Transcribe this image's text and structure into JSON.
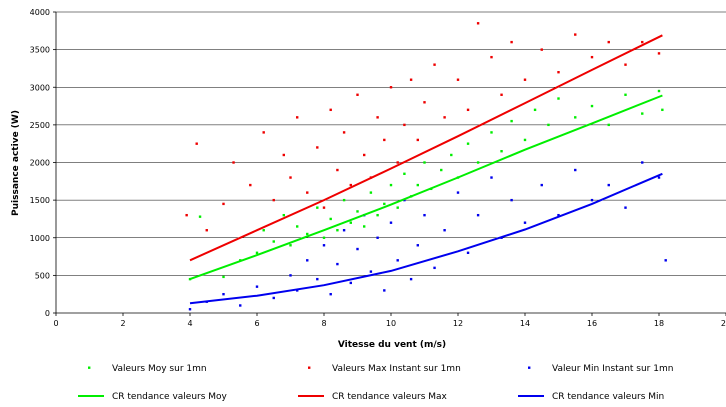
{
  "chart_data": {
    "type": "scatter",
    "title": "",
    "xlabel": "Vitesse du vent (m/s)",
    "ylabel": "Puissance active (W)",
    "xlim": [
      0,
      20
    ],
    "ylim": [
      0,
      4000
    ],
    "x_ticks": [
      "0",
      "2",
      "4",
      "6",
      "8",
      "10",
      "12",
      "14",
      "16",
      "18",
      "20"
    ],
    "y_ticks": [
      "0",
      "500",
      "1000",
      "1500",
      "2000",
      "2500",
      "3000",
      "3500",
      "4000"
    ],
    "grid": "horizontal",
    "legend_position": "bottom",
    "series": [
      {
        "name": "Valeurs Moy sur 1mn",
        "kind": "scatter",
        "color": "#00ee00",
        "points": [
          [
            4.0,
            450
          ],
          [
            4.3,
            1280
          ],
          [
            5.0,
            480
          ],
          [
            5.5,
            700
          ],
          [
            6.0,
            800
          ],
          [
            6.2,
            1100
          ],
          [
            6.5,
            950
          ],
          [
            6.8,
            1300
          ],
          [
            7.0,
            900
          ],
          [
            7.2,
            1150
          ],
          [
            7.5,
            1050
          ],
          [
            7.8,
            1400
          ],
          [
            8.0,
            1000
          ],
          [
            8.2,
            1250
          ],
          [
            8.4,
            1100
          ],
          [
            8.6,
            1500
          ],
          [
            8.8,
            1200
          ],
          [
            9.0,
            1350
          ],
          [
            9.2,
            1150
          ],
          [
            9.4,
            1600
          ],
          [
            9.6,
            1300
          ],
          [
            9.8,
            1450
          ],
          [
            10.0,
            1700
          ],
          [
            10.2,
            1400
          ],
          [
            10.4,
            1850
          ],
          [
            10.6,
            1550
          ],
          [
            10.8,
            1700
          ],
          [
            11.0,
            2000
          ],
          [
            11.2,
            1650
          ],
          [
            11.5,
            1900
          ],
          [
            11.8,
            2100
          ],
          [
            12.0,
            1800
          ],
          [
            12.3,
            2250
          ],
          [
            12.6,
            2000
          ],
          [
            13.0,
            2400
          ],
          [
            13.3,
            2150
          ],
          [
            13.6,
            2550
          ],
          [
            14.0,
            2300
          ],
          [
            14.3,
            2700
          ],
          [
            14.7,
            2500
          ],
          [
            15.0,
            2850
          ],
          [
            15.5,
            2600
          ],
          [
            16.0,
            2750
          ],
          [
            16.5,
            2500
          ],
          [
            17.0,
            2900
          ],
          [
            17.5,
            2650
          ],
          [
            18.0,
            2950
          ],
          [
            18.1,
            2700
          ]
        ]
      },
      {
        "name": "Valeurs Max Instant sur 1mn",
        "kind": "scatter",
        "color": "#ee0000",
        "points": [
          [
            3.9,
            1300
          ],
          [
            4.2,
            2250
          ],
          [
            4.5,
            1100
          ],
          [
            5.0,
            1450
          ],
          [
            5.3,
            2000
          ],
          [
            5.8,
            1700
          ],
          [
            6.2,
            2400
          ],
          [
            6.5,
            1500
          ],
          [
            6.8,
            2100
          ],
          [
            7.0,
            1800
          ],
          [
            7.2,
            2600
          ],
          [
            7.5,
            1600
          ],
          [
            7.8,
            2200
          ],
          [
            8.0,
            1400
          ],
          [
            8.2,
            2700
          ],
          [
            8.4,
            1900
          ],
          [
            8.6,
            2400
          ],
          [
            8.8,
            1700
          ],
          [
            9.0,
            2900
          ],
          [
            9.2,
            2100
          ],
          [
            9.4,
            1800
          ],
          [
            9.6,
            2600
          ],
          [
            9.8,
            2300
          ],
          [
            10.0,
            3000
          ],
          [
            10.2,
            2000
          ],
          [
            10.4,
            2500
          ],
          [
            10.6,
            3100
          ],
          [
            10.8,
            2300
          ],
          [
            11.0,
            2800
          ],
          [
            11.3,
            3300
          ],
          [
            11.6,
            2600
          ],
          [
            12.0,
            3100
          ],
          [
            12.3,
            2700
          ],
          [
            12.6,
            3850
          ],
          [
            13.0,
            3400
          ],
          [
            13.3,
            2900
          ],
          [
            13.6,
            3600
          ],
          [
            14.0,
            3100
          ],
          [
            14.5,
            3500
          ],
          [
            15.0,
            3200
          ],
          [
            15.5,
            3700
          ],
          [
            16.0,
            3400
          ],
          [
            16.5,
            3600
          ],
          [
            17.0,
            3300
          ],
          [
            17.5,
            3600
          ],
          [
            18.0,
            3450
          ]
        ]
      },
      {
        "name": "Valeur Min Instant sur 1mn",
        "kind": "scatter",
        "color": "#0000ee",
        "points": [
          [
            4.0,
            50
          ],
          [
            4.5,
            150
          ],
          [
            5.0,
            250
          ],
          [
            5.5,
            100
          ],
          [
            6.0,
            350
          ],
          [
            6.5,
            200
          ],
          [
            7.0,
            500
          ],
          [
            7.2,
            300
          ],
          [
            7.5,
            700
          ],
          [
            7.8,
            450
          ],
          [
            8.0,
            900
          ],
          [
            8.2,
            250
          ],
          [
            8.4,
            650
          ],
          [
            8.6,
            1100
          ],
          [
            8.8,
            400
          ],
          [
            9.0,
            850
          ],
          [
            9.2,
            1300
          ],
          [
            9.4,
            550
          ],
          [
            9.6,
            1000
          ],
          [
            9.8,
            300
          ],
          [
            10.0,
            1200
          ],
          [
            10.2,
            700
          ],
          [
            10.4,
            1500
          ],
          [
            10.6,
            450
          ],
          [
            10.8,
            900
          ],
          [
            11.0,
            1300
          ],
          [
            11.3,
            600
          ],
          [
            11.6,
            1100
          ],
          [
            12.0,
            1600
          ],
          [
            12.3,
            800
          ],
          [
            12.6,
            1300
          ],
          [
            13.0,
            1800
          ],
          [
            13.3,
            1000
          ],
          [
            13.6,
            1500
          ],
          [
            14.0,
            1200
          ],
          [
            14.5,
            1700
          ],
          [
            15.0,
            1300
          ],
          [
            15.5,
            1900
          ],
          [
            16.0,
            1500
          ],
          [
            16.5,
            1700
          ],
          [
            17.0,
            1400
          ],
          [
            17.5,
            2000
          ],
          [
            18.0,
            1800
          ],
          [
            18.2,
            700
          ]
        ]
      },
      {
        "name": "CR tendance valeurs Moy",
        "kind": "trend",
        "color": "#00ee00",
        "points": [
          [
            4.0,
            450
          ],
          [
            6.0,
            770
          ],
          [
            8.0,
            1100
          ],
          [
            10.0,
            1440
          ],
          [
            12.0,
            1800
          ],
          [
            14.0,
            2170
          ],
          [
            16.0,
            2520
          ],
          [
            18.1,
            2890
          ]
        ]
      },
      {
        "name": "CR tendance valeurs Max",
        "kind": "trend",
        "color": "#ee0000",
        "points": [
          [
            4.0,
            700
          ],
          [
            6.0,
            1100
          ],
          [
            8.0,
            1500
          ],
          [
            10.0,
            1920
          ],
          [
            12.0,
            2350
          ],
          [
            14.0,
            2790
          ],
          [
            16.0,
            3230
          ],
          [
            18.1,
            3690
          ]
        ]
      },
      {
        "name": "CR tendance valeurs Min",
        "kind": "trend",
        "color": "#0000ee",
        "points": [
          [
            4.0,
            130
          ],
          [
            6.0,
            230
          ],
          [
            8.0,
            370
          ],
          [
            10.0,
            560
          ],
          [
            12.0,
            820
          ],
          [
            14.0,
            1110
          ],
          [
            16.0,
            1450
          ],
          [
            18.1,
            1850
          ]
        ]
      }
    ]
  }
}
